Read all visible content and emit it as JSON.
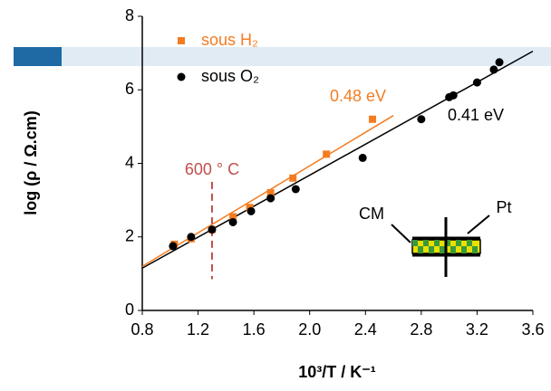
{
  "chart_data": {
    "type": "scatter",
    "xlabel": "10³/T / K⁻¹",
    "ylabel": "log (ρ / Ω.cm)",
    "xlim": [
      0.8,
      3.6
    ],
    "xticks": [
      0.8,
      1.2,
      1.6,
      {
        "value": 2,
        "label": "2.0"
      },
      2.4,
      2.8,
      3.2,
      3.6
    ],
    "ylim": [
      0,
      8
    ],
    "yticks": [
      0,
      2,
      4,
      6,
      8
    ],
    "series": [
      {
        "name": "sous H₂",
        "color": "#f47c20",
        "marker": "square",
        "x": [
          1.03,
          1.15,
          1.3,
          1.45,
          1.57,
          1.72,
          1.88,
          2.12,
          2.45
        ],
        "values": [
          1.8,
          1.95,
          2.2,
          2.55,
          2.8,
          3.2,
          3.6,
          4.25,
          5.2
        ]
      },
      {
        "name": "sous O₂",
        "color": "#000000",
        "marker": "circle",
        "x": [
          1.02,
          1.15,
          1.3,
          1.45,
          1.58,
          1.72,
          1.9,
          2.38,
          2.8,
          3.0,
          3.03,
          3.2,
          3.32,
          3.36
        ],
        "values": [
          1.75,
          2.0,
          2.2,
          2.4,
          2.7,
          3.05,
          3.3,
          4.15,
          5.2,
          5.8,
          5.85,
          6.2,
          6.55,
          6.75
        ]
      }
    ],
    "fits": [
      {
        "label": "0.48 eV",
        "color": "#f47c20",
        "x": [
          0.8,
          2.6
        ],
        "values": [
          1.2,
          5.3
        ]
      },
      {
        "label": "0.41 eV",
        "color": "#000000",
        "x": [
          0.8,
          3.6
        ],
        "values": [
          1.15,
          7.05
        ]
      }
    ],
    "vline": {
      "x": 1.3,
      "label": "600 ° C",
      "color": "#c0504d"
    },
    "inset_labels": [
      "CM",
      "Pt"
    ]
  }
}
